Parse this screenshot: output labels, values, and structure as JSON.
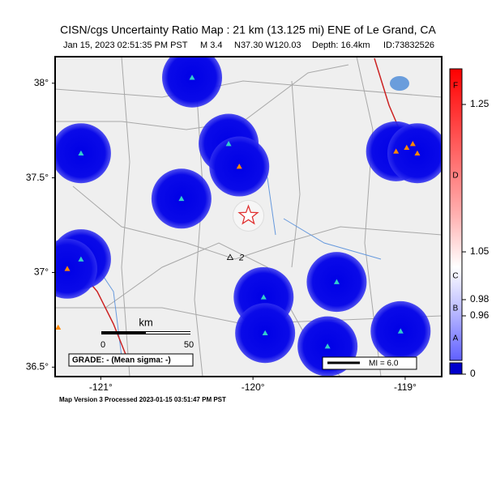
{
  "map": {
    "title": "CISN/cgs Uncertainty Ratio Map : 21 km (13.125 mi) ENE of Le Grand, CA",
    "subtitle": {
      "date": "Jan 15, 2023 02:51:35 PM PST",
      "magnitude": "M 3.4",
      "location": "N37.30 W120.03",
      "depth": "Depth: 16.4km",
      "id": "ID:73832526"
    },
    "xlim": [
      -121.3,
      -118.76
    ],
    "ylim": [
      36.45,
      38.14
    ],
    "xticks": [
      {
        "value": -121,
        "label": "-121°"
      },
      {
        "value": -120,
        "label": "-120°"
      },
      {
        "value": -119,
        "label": "-119°"
      }
    ],
    "yticks": [
      {
        "value": 38,
        "label": "38°"
      },
      {
        "value": 37.5,
        "label": "37.5°"
      },
      {
        "value": 37,
        "label": "37°"
      },
      {
        "value": 36.5,
        "label": "36.5°"
      }
    ],
    "epicenter": {
      "lat": 37.3,
      "lon": -120.03,
      "color": "#e03030"
    },
    "labeled_station": {
      "lat": 37.08,
      "lon": -120.15,
      "label": "2"
    },
    "stations": [
      {
        "lat": 38.03,
        "lon": -120.4,
        "color": "#33cccc"
      },
      {
        "lat": 37.63,
        "lon": -121.13,
        "color": "#33cccc"
      },
      {
        "lat": 37.68,
        "lon": -120.16,
        "color": "#33cccc"
      },
      {
        "lat": 37.56,
        "lon": -120.09,
        "color": "#ff8800"
      },
      {
        "lat": 37.39,
        "lon": -120.47,
        "color": "#33cccc"
      },
      {
        "lat": 37.07,
        "lon": -121.13,
        "color": "#33cccc"
      },
      {
        "lat": 37.02,
        "lon": -121.22,
        "color": "#ff8800"
      },
      {
        "lat": 36.87,
        "lon": -119.93,
        "color": "#33cccc"
      },
      {
        "lat": 36.68,
        "lon": -119.92,
        "color": "#33cccc"
      },
      {
        "lat": 36.95,
        "lon": -119.45,
        "color": "#33cccc"
      },
      {
        "lat": 36.61,
        "lon": -119.51,
        "color": "#33cccc"
      },
      {
        "lat": 36.69,
        "lon": -119.03,
        "color": "#33cccc"
      },
      {
        "lat": 37.64,
        "lon": -119.06,
        "color": "#ff8800"
      },
      {
        "lat": 37.66,
        "lon": -118.99,
        "color": "#ff8800"
      },
      {
        "lat": 37.68,
        "lon": -118.95,
        "color": "#ff8800"
      },
      {
        "lat": 37.63,
        "lon": -118.92,
        "color": "#ff8800"
      },
      {
        "lat": 36.71,
        "lon": -121.28,
        "color": "#ff8800"
      }
    ],
    "scale_bar": {
      "unit": "km",
      "start": "0",
      "end": "50"
    },
    "grade": "GRADE: - (Mean sigma: -)",
    "legend": "MI = 6.0",
    "colorbar": {
      "grades": [
        "F",
        "D",
        "C",
        "B",
        "A"
      ],
      "ticks": [
        1.25,
        1.05,
        0.98,
        0.96,
        0
      ]
    },
    "footer": "Map Version 3 Processed 2023-01-15 03:51:47 PM PST"
  }
}
